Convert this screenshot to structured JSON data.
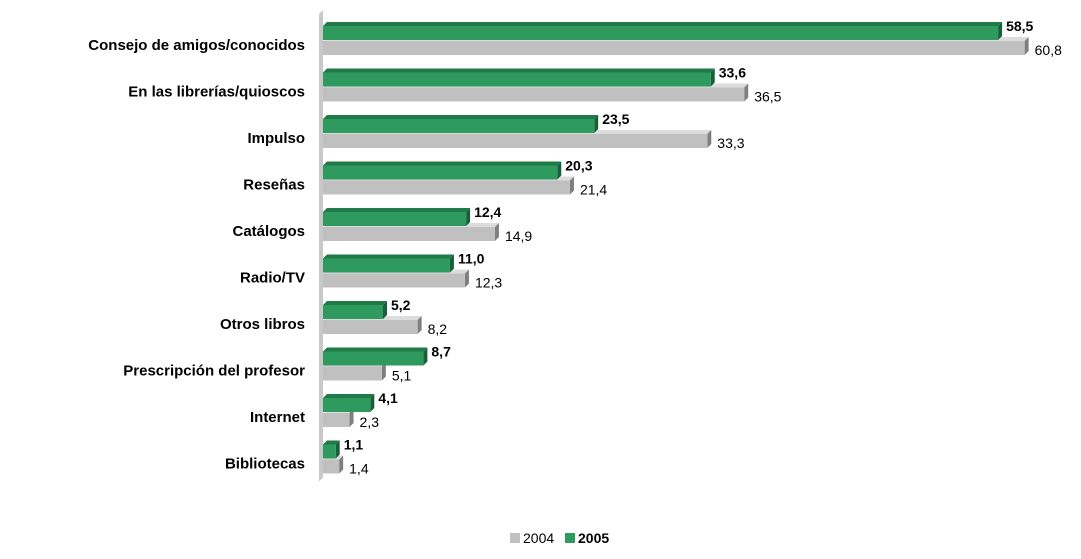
{
  "chart_data": {
    "type": "bar",
    "orientation": "horizontal",
    "style": "3d",
    "categories": [
      "Consejo de amigos/conocidos",
      "En las librerías/quioscos",
      "Impulso",
      "Reseñas",
      "Catálogos",
      "Radio/TV",
      "Otros libros",
      "Prescripción del profesor",
      "Internet",
      "Bibliotecas"
    ],
    "series": [
      {
        "name": "2005",
        "values": [
          58.5,
          33.6,
          23.5,
          20.3,
          12.4,
          11.0,
          5.2,
          8.7,
          4.1,
          1.1
        ],
        "labels": [
          "58,5",
          "33,6",
          "23,5",
          "20,3",
          "12,4",
          "11,0",
          "5,2",
          "8,7",
          "4,1",
          "1,1"
        ],
        "color": "#2e9a5e",
        "top_color": "#1f7a47",
        "side_color": "#17603a"
      },
      {
        "name": "2004",
        "values": [
          60.8,
          36.5,
          33.3,
          21.4,
          14.9,
          12.3,
          8.2,
          5.1,
          2.3,
          1.4
        ],
        "labels": [
          "60,8",
          "36,5",
          "33,3",
          "21,4",
          "14,9",
          "12,3",
          "8,2",
          "5,1",
          "2,3",
          "1,4"
        ],
        "color": "#c0c0c0",
        "top_color": "#dcdcdc",
        "side_color": "#7f7f7f"
      }
    ],
    "xlim": [
      0,
      60.8
    ],
    "grid": false,
    "legend": {
      "position": "bottom",
      "items": [
        {
          "name": "2004",
          "color": "#c0c0c0",
          "bold": false
        },
        {
          "name": "2005",
          "color": "#2e9a5e",
          "bold": true
        }
      ]
    }
  },
  "colors": {
    "wall": "#c8c8c8"
  }
}
